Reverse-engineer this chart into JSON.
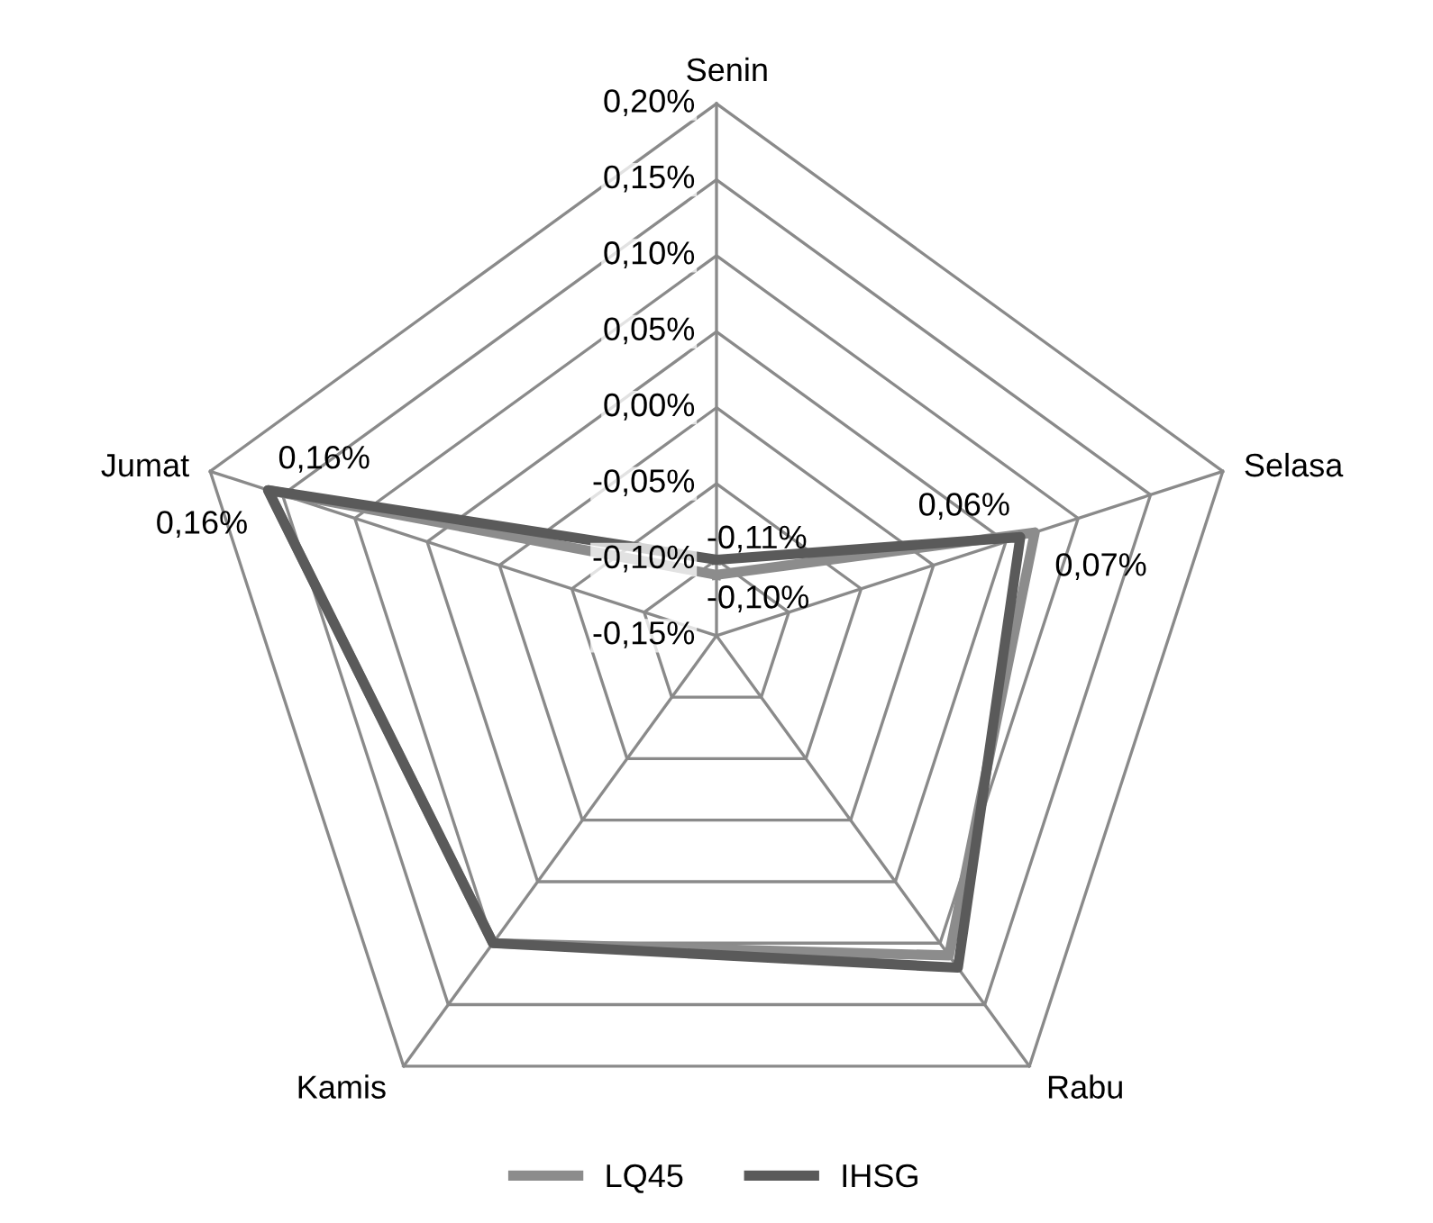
{
  "chart_data": {
    "type": "radar",
    "categories": [
      "Senin",
      "Selasa",
      "Rabu",
      "Kamis",
      "Jumat"
    ],
    "series": [
      {
        "name": "LQ45",
        "color": "#8c8c8c",
        "values": [
          -0.11,
          0.07,
          0.11,
          0.1,
          0.16
        ],
        "value_labels": [
          "-0,11%",
          "0,07%",
          null,
          null,
          "0,16%"
        ]
      },
      {
        "name": "IHSG",
        "color": "#5a5a5a",
        "values": [
          -0.1,
          0.06,
          0.12,
          0.1,
          0.16
        ],
        "value_labels": [
          "-0,10%",
          "0,06%",
          null,
          null,
          "0,16%"
        ]
      }
    ],
    "ylim": [
      -0.15,
      0.2
    ],
    "yticks": [
      {
        "value": -0.15,
        "label": "-0,15%"
      },
      {
        "value": -0.1,
        "label": "-0,10%"
      },
      {
        "value": -0.05,
        "label": "-0,05%"
      },
      {
        "value": 0,
        "label": "0,00%"
      },
      {
        "value": 0.05,
        "label": "0,05%"
      },
      {
        "value": 0.1,
        "label": "0,10%"
      },
      {
        "value": 0.15,
        "label": "0,15%"
      },
      {
        "value": 0.2,
        "label": "0,20%"
      }
    ],
    "grid": true,
    "legend": "bottom"
  }
}
